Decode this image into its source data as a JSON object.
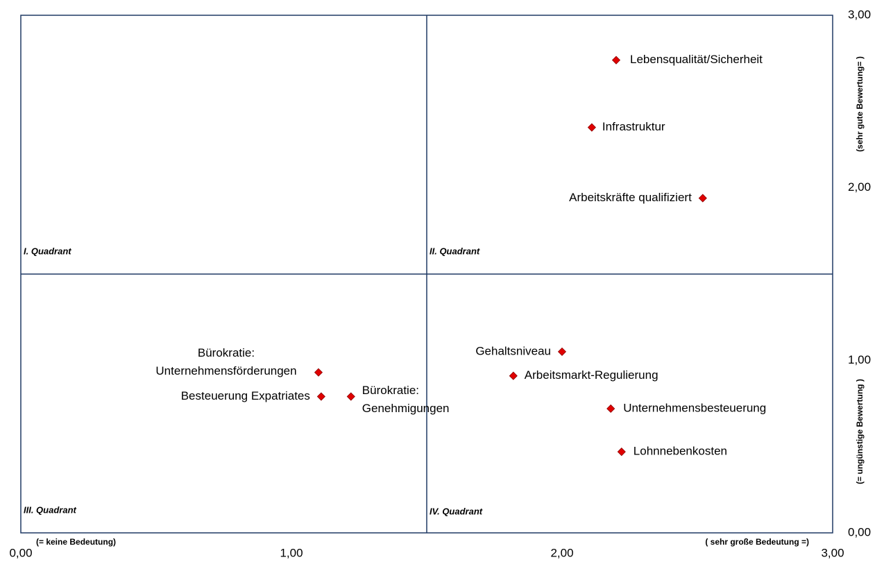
{
  "chart_data": {
    "type": "scatter",
    "points": [
      {
        "label": [
          "Lebensqualität/Sicherheit"
        ],
        "x": 2.2,
        "y": 2.74
      },
      {
        "label": [
          "Infrastruktur"
        ],
        "x": 2.11,
        "y": 2.35
      },
      {
        "label": [
          "Arbeitskräfte qualifiziert"
        ],
        "x": 2.52,
        "y": 1.94
      },
      {
        "label": [
          "Bürokratie:",
          "Unternehmensförderungen"
        ],
        "x": 1.1,
        "y": 0.93
      },
      {
        "label": [
          "Besteuerung Expatriates"
        ],
        "x": 1.11,
        "y": 0.79
      },
      {
        "label": [
          "Bürokratie:",
          "Genehmigungen"
        ],
        "x": 1.22,
        "y": 0.79
      },
      {
        "label": [
          "Gehaltsniveau"
        ],
        "x": 2.0,
        "y": 1.05
      },
      {
        "label": [
          "Arbeitsmarkt-Regulierung"
        ],
        "x": 1.82,
        "y": 0.91
      },
      {
        "label": [
          "Unternehmensbesteuerung"
        ],
        "x": 2.18,
        "y": 0.72
      },
      {
        "label": [
          "Lohnnebenkosten"
        ],
        "x": 2.22,
        "y": 0.47
      }
    ],
    "color": "#e00000",
    "xlim": [
      0,
      3
    ],
    "ylim": [
      0,
      3
    ],
    "xticks": [
      {
        "value": 0,
        "label": "0,00"
      },
      {
        "value": 1,
        "label": "1,00"
      },
      {
        "value": 2,
        "label": "2,00"
      },
      {
        "value": 3,
        "label": "3,00"
      }
    ],
    "yticks": [
      {
        "value": 0,
        "label": "0,00"
      },
      {
        "value": 1,
        "label": "1,00"
      },
      {
        "value": 2,
        "label": "2,00"
      },
      {
        "value": 3,
        "label": "3,00"
      }
    ],
    "quadrant_dividers": {
      "x": 1.5,
      "y": 1.5
    },
    "quadrant_labels": [
      "I. Quadrant",
      "II. Quadrant",
      "III. Quadrant",
      "IV. Quadrant"
    ],
    "x_axis_notes": [
      "(= keine Bedeutung)",
      "( sehr große Bedeutung =)"
    ],
    "y_axis_notes": [
      "(= ungünstige Bewertung )",
      "(sehr gute Bewertung= )"
    ],
    "grid": false
  }
}
